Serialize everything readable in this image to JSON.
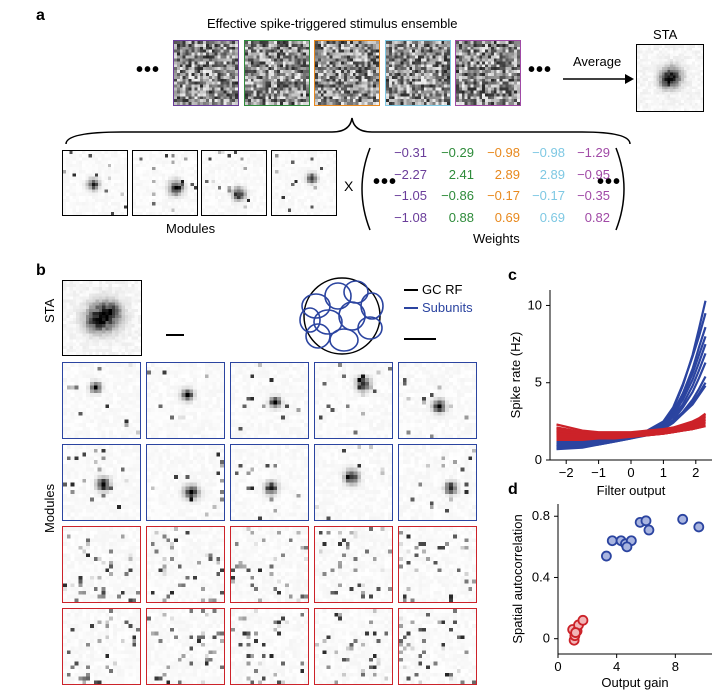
{
  "panels": {
    "a": "a",
    "b": "b",
    "c": "c",
    "d": "d"
  },
  "panel_a": {
    "title": "Effective spike-triggered stimulus ensemble",
    "average_label": "Average",
    "sta_label": "STA",
    "modules_label": "Modules",
    "weights_label": "Weights",
    "times_symbol": "X",
    "ellipsis": "•••",
    "frame_colors": [
      "#6a3d9a",
      "#2e8b3a",
      "#e8891e",
      "#7ec8e3",
      "#a04aa6"
    ],
    "weights": [
      [
        {
          "v": "−0.31",
          "c": "#6a3d9a"
        },
        {
          "v": "−0.29",
          "c": "#2e8b3a"
        },
        {
          "v": "−0.98",
          "c": "#e8891e"
        },
        {
          "v": "−0.98",
          "c": "#7ec8e3"
        },
        {
          "v": "−1.29",
          "c": "#a04aa6"
        }
      ],
      [
        {
          "v": "−2.27",
          "c": "#6a3d9a"
        },
        {
          "v": "2.41",
          "c": "#2e8b3a"
        },
        {
          "v": "2.89",
          "c": "#e8891e"
        },
        {
          "v": "2.89",
          "c": "#7ec8e3"
        },
        {
          "v": "−0.95",
          "c": "#a04aa6"
        }
      ],
      [
        {
          "v": "−1.05",
          "c": "#6a3d9a"
        },
        {
          "v": "−0.86",
          "c": "#2e8b3a"
        },
        {
          "v": "−0.17",
          "c": "#e8891e"
        },
        {
          "v": "−0.17",
          "c": "#7ec8e3"
        },
        {
          "v": "−0.35",
          "c": "#a04aa6"
        }
      ],
      [
        {
          "v": "−1.08",
          "c": "#6a3d9a"
        },
        {
          "v": "0.88",
          "c": "#2e8b3a"
        },
        {
          "v": "0.69",
          "c": "#e8891e"
        },
        {
          "v": "0.69",
          "c": "#7ec8e3"
        },
        {
          "v": "0.82",
          "c": "#a04aa6"
        }
      ]
    ]
  },
  "panel_b": {
    "sta_label": "STA",
    "modules_label": "Modules",
    "legend": [
      {
        "label": "GC RF",
        "color": "#000000"
      },
      {
        "label": "Subunits",
        "color": "#2b44a0"
      }
    ],
    "blue": "#2b44a0",
    "red": "#cc2229"
  },
  "chart_data": [
    {
      "panel": "c",
      "type": "line",
      "xlabel": "Filter output",
      "ylabel": "Spike rate (Hz)",
      "xlim": [
        -2.5,
        2.5
      ],
      "ylim": [
        0,
        11
      ],
      "xticks": [
        -2,
        -1,
        0,
        1,
        2
      ],
      "yticks": [
        0,
        5,
        10
      ],
      "x": [
        -2.3,
        -1.5,
        -1.0,
        -0.5,
        0.0,
        0.5,
        1.0,
        1.3,
        1.6,
        1.9,
        2.1,
        2.3
      ],
      "series": [
        {
          "group": "blue",
          "values": [
            1.2,
            1.2,
            1.3,
            1.4,
            1.6,
            1.8,
            2.4,
            3.3,
            4.8,
            6.8,
            8.5,
            10.3
          ]
        },
        {
          "group": "blue",
          "values": [
            1.1,
            1.1,
            1.2,
            1.4,
            1.6,
            1.9,
            2.5,
            3.4,
            4.9,
            6.7,
            8.0,
            9.5
          ]
        },
        {
          "group": "blue",
          "values": [
            0.9,
            1.0,
            1.1,
            1.3,
            1.5,
            1.8,
            2.3,
            3.1,
            4.3,
            5.9,
            7.3,
            8.6
          ]
        },
        {
          "group": "blue",
          "values": [
            1.0,
            1.0,
            1.1,
            1.3,
            1.5,
            1.8,
            2.3,
            3.0,
            4.1,
            5.6,
            6.8,
            8.0
          ]
        },
        {
          "group": "blue",
          "values": [
            0.8,
            0.9,
            1.0,
            1.2,
            1.4,
            1.7,
            2.2,
            2.9,
            3.9,
            5.2,
            6.3,
            7.5
          ]
        },
        {
          "group": "blue",
          "values": [
            1.1,
            1.1,
            1.2,
            1.4,
            1.6,
            1.8,
            2.2,
            2.8,
            3.6,
            4.8,
            5.8,
            6.9
          ]
        },
        {
          "group": "blue",
          "values": [
            0.9,
            1.0,
            1.1,
            1.3,
            1.5,
            1.7,
            2.1,
            2.6,
            3.4,
            4.4,
            5.3,
            6.3
          ]
        },
        {
          "group": "blue",
          "values": [
            1.0,
            1.1,
            1.2,
            1.3,
            1.5,
            1.7,
            2.0,
            2.5,
            3.1,
            3.9,
            4.6,
            5.4
          ]
        },
        {
          "group": "blue",
          "values": [
            1.3,
            1.3,
            1.4,
            1.5,
            1.6,
            1.8,
            2.1,
            2.5,
            3.0,
            3.7,
            4.3,
            5.0
          ]
        },
        {
          "group": "blue",
          "values": [
            0.7,
            0.8,
            1.0,
            1.2,
            1.4,
            1.6,
            2.0,
            2.4,
            3.0,
            3.6,
            4.2,
            4.8
          ]
        },
        {
          "group": "red",
          "values": [
            2.3,
            1.9,
            1.8,
            1.8,
            1.8,
            1.9,
            2.0,
            2.1,
            2.3,
            2.5,
            2.7,
            3.0
          ]
        },
        {
          "group": "red",
          "values": [
            2.0,
            1.8,
            1.7,
            1.7,
            1.7,
            1.8,
            1.9,
            2.0,
            2.2,
            2.4,
            2.6,
            2.8
          ]
        },
        {
          "group": "red",
          "values": [
            1.8,
            1.6,
            1.6,
            1.6,
            1.6,
            1.7,
            1.8,
            1.9,
            2.0,
            2.2,
            2.4,
            2.6
          ]
        },
        {
          "group": "red",
          "values": [
            1.6,
            1.5,
            1.5,
            1.5,
            1.6,
            1.7,
            1.8,
            1.9,
            2.0,
            2.1,
            2.3,
            2.4
          ]
        },
        {
          "group": "red",
          "values": [
            1.4,
            1.4,
            1.4,
            1.5,
            1.5,
            1.6,
            1.7,
            1.8,
            1.9,
            2.0,
            2.1,
            2.2
          ]
        },
        {
          "group": "red",
          "values": [
            1.9,
            1.7,
            1.6,
            1.6,
            1.6,
            1.7,
            1.8,
            1.9,
            2.1,
            2.3,
            2.5,
            2.7
          ]
        },
        {
          "group": "red",
          "values": [
            1.5,
            1.5,
            1.5,
            1.5,
            1.6,
            1.6,
            1.7,
            1.8,
            1.9,
            2.0,
            2.2,
            2.3
          ]
        },
        {
          "group": "red",
          "values": [
            1.7,
            1.6,
            1.6,
            1.6,
            1.6,
            1.7,
            1.8,
            1.9,
            2.0,
            2.2,
            2.3,
            2.5
          ]
        },
        {
          "group": "red",
          "values": [
            2.1,
            1.8,
            1.7,
            1.7,
            1.7,
            1.8,
            1.9,
            2.0,
            2.2,
            2.4,
            2.6,
            2.9
          ]
        },
        {
          "group": "red",
          "values": [
            1.3,
            1.3,
            1.4,
            1.4,
            1.5,
            1.6,
            1.7,
            1.8,
            1.9,
            2.0,
            2.1,
            2.2
          ]
        }
      ],
      "colors": {
        "blue": "#2b44a0",
        "red": "#cc2229"
      }
    },
    {
      "panel": "d",
      "type": "scatter",
      "xlabel": "Output gain",
      "ylabel": "Spatial autocorrelation",
      "xlim": [
        0,
        10.5
      ],
      "ylim": [
        -0.1,
        0.88
      ],
      "xticks": [
        0,
        4,
        8
      ],
      "yticks": [
        0,
        0.4,
        0.8
      ],
      "series": [
        {
          "group": "blue",
          "points": [
            [
              3.3,
              0.54
            ],
            [
              3.7,
              0.64
            ],
            [
              4.3,
              0.64
            ],
            [
              4.6,
              0.62
            ],
            [
              5.0,
              0.64
            ],
            [
              5.6,
              0.76
            ],
            [
              6.0,
              0.77
            ],
            [
              6.2,
              0.71
            ],
            [
              8.5,
              0.78
            ],
            [
              9.6,
              0.73
            ],
            [
              4.7,
              0.6
            ]
          ]
        },
        {
          "group": "red",
          "points": [
            [
              1.0,
              0.06
            ],
            [
              1.1,
              -0.01
            ],
            [
              1.15,
              0.02
            ],
            [
              1.3,
              0.05
            ],
            [
              1.4,
              0.09
            ],
            [
              1.7,
              0.12
            ],
            [
              1.2,
              0.04
            ]
          ]
        }
      ],
      "colors": {
        "blue": "#2b44a0",
        "red": "#cc2229"
      }
    }
  ]
}
